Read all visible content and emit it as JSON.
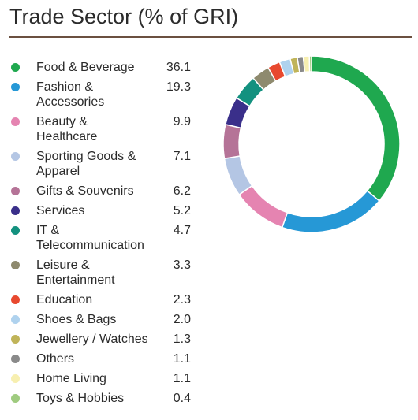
{
  "header": {
    "title": "Trade Sector (% of GRI)"
  },
  "chart_data": {
    "type": "pie",
    "style": "donut",
    "title": "Trade Sector (% of GRI)",
    "legend_position": "left",
    "slices": [
      {
        "label": "Food & Beverage",
        "value": 36.1,
        "value_text": "36.1",
        "color": "#1fa84f"
      },
      {
        "label": "Fashion & Accessories",
        "value": 19.3,
        "value_text": "19.3",
        "color": "#2698d6"
      },
      {
        "label": "Beauty & Healthcare",
        "value": 9.9,
        "value_text": "9.9",
        "color": "#e584b1"
      },
      {
        "label": "Sporting Goods & Apparel",
        "value": 7.1,
        "value_text": "7.1",
        "color": "#b4c6e4"
      },
      {
        "label": "Gifts & Souvenirs",
        "value": 6.2,
        "value_text": "6.2",
        "color": "#b57397"
      },
      {
        "label": "Services",
        "value": 5.2,
        "value_text": "5.2",
        "color": "#3a2f8a"
      },
      {
        "label": "IT & Telecommunication",
        "value": 4.7,
        "value_text": "4.7",
        "color": "#13917f"
      },
      {
        "label": "Leisure & Entertainment",
        "value": 3.3,
        "value_text": "3.3",
        "color": "#8e8a6e"
      },
      {
        "label": "Education",
        "value": 2.3,
        "value_text": "2.3",
        "color": "#e8492f"
      },
      {
        "label": "Shoes & Bags",
        "value": 2.0,
        "value_text": "2.0",
        "color": "#afd2ee"
      },
      {
        "label": "Jewellery / Watches",
        "value": 1.3,
        "value_text": "1.3",
        "color": "#c0b459"
      },
      {
        "label": "Others",
        "value": 1.1,
        "value_text": "1.1",
        "color": "#8a8a8a"
      },
      {
        "label": "Home Living",
        "value": 1.1,
        "value_text": "1.1",
        "color": "#f7efb0"
      },
      {
        "label": "Toys & Hobbies",
        "value": 0.4,
        "value_text": "0.4",
        "color": "#9fcb7f"
      }
    ]
  }
}
